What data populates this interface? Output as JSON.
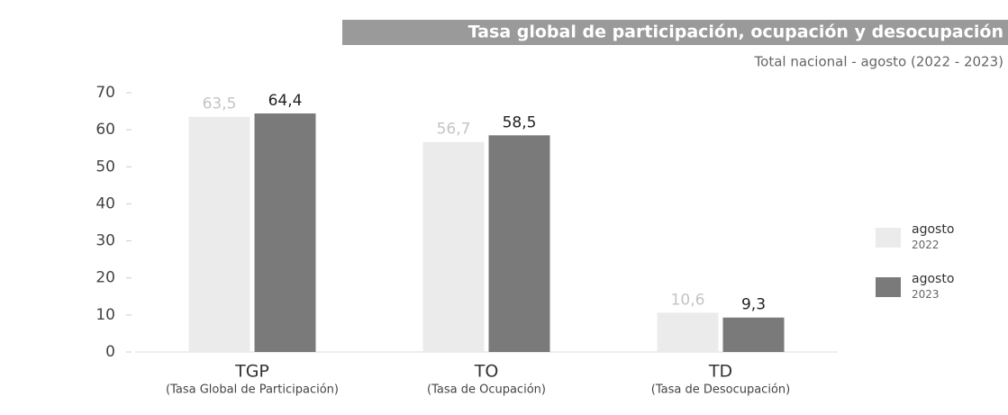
{
  "chart_data": {
    "type": "bar",
    "title": "Tasa global de participación, ocupación y desocupación",
    "subtitle": "Total nacional - agosto (2022 - 2023)",
    "categories": [
      "TGP",
      "TO",
      "TD"
    ],
    "category_descriptions": [
      "(Tasa Global de Participación)",
      "(Tasa de Ocupación)",
      "(Tasa de Desocupación)"
    ],
    "series": [
      {
        "name": "agosto 2022",
        "color": "#ebebeb",
        "values": [
          63.5,
          56.7,
          10.6
        ],
        "value_labels": [
          "63,5",
          "56,7",
          "10,6"
        ]
      },
      {
        "name": "agosto 2023",
        "color": "#7a7a7a",
        "values": [
          64.4,
          58.5,
          9.3
        ],
        "value_labels": [
          "64,4",
          "58,5",
          "9,3"
        ]
      }
    ],
    "ylim": [
      0,
      70
    ],
    "yticks": [
      0,
      10,
      20,
      30,
      40,
      50,
      60,
      70
    ],
    "grid": false
  }
}
